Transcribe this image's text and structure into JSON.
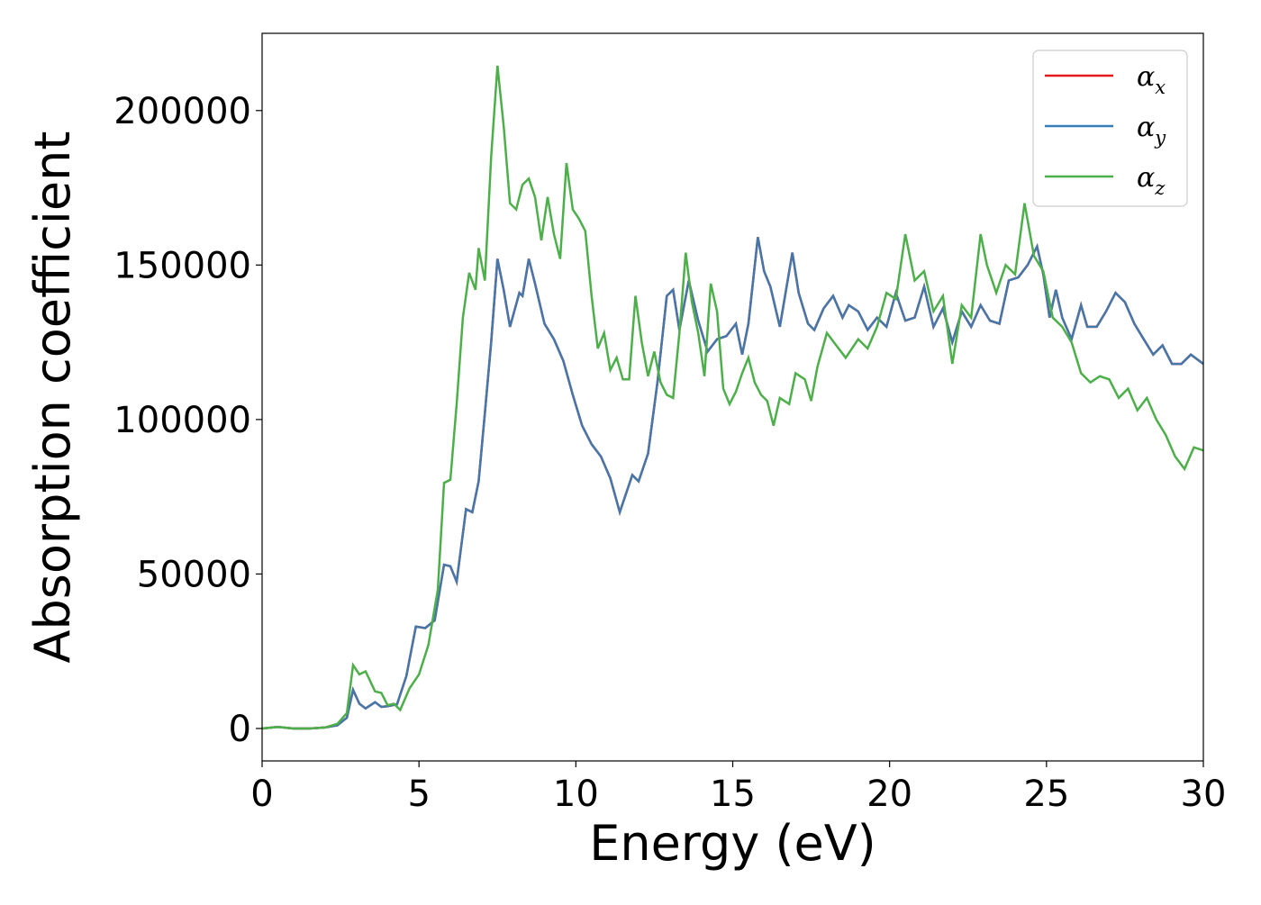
{
  "chart_data": {
    "type": "line",
    "title": "",
    "xlabel": "Energy (eV)",
    "ylabel": "Absorption coefficient",
    "xlim": [
      0,
      30
    ],
    "ylim": [
      -10500,
      225000
    ],
    "xticks": [
      0,
      5,
      10,
      15,
      20,
      25,
      30
    ],
    "xtick_labels": [
      "0",
      "5",
      "10",
      "15",
      "20",
      "25",
      "30"
    ],
    "yticks": [
      0,
      50000,
      100000,
      150000,
      200000
    ],
    "ytick_labels": [
      "0",
      "50000",
      "100000",
      "150000",
      "200000"
    ],
    "grid": false,
    "legend": {
      "placement": "top-right",
      "entries": [
        {
          "base": "α",
          "sub": "x",
          "color": "#e41a1c"
        },
        {
          "base": "α",
          "sub": "y",
          "color": "#377eb8"
        },
        {
          "base": "α",
          "sub": "z",
          "color": "#4daf4a"
        }
      ]
    },
    "series_xy": {
      "name": "αy",
      "note_overlap": "αx coincides with αy",
      "color": "#4477aa",
      "points": [
        [
          0,
          0
        ],
        [
          0.5,
          500
        ],
        [
          1.0,
          0
        ],
        [
          1.5,
          0
        ],
        [
          2.0,
          300
        ],
        [
          2.4,
          1000
        ],
        [
          2.7,
          3500
        ],
        [
          2.9,
          12500
        ],
        [
          3.1,
          8000
        ],
        [
          3.3,
          6500
        ],
        [
          3.6,
          8500
        ],
        [
          3.8,
          7000
        ],
        [
          4.0,
          7200
        ],
        [
          4.3,
          7800
        ],
        [
          4.6,
          17000
        ],
        [
          4.9,
          33000
        ],
        [
          5.2,
          32500
        ],
        [
          5.5,
          35000
        ],
        [
          5.8,
          53000
        ],
        [
          6.0,
          52500
        ],
        [
          6.2,
          47500
        ],
        [
          6.5,
          71000
        ],
        [
          6.7,
          70000
        ],
        [
          6.9,
          80000
        ],
        [
          7.1,
          102000
        ],
        [
          7.3,
          125000
        ],
        [
          7.5,
          152000
        ],
        [
          7.7,
          142000
        ],
        [
          7.9,
          130000
        ],
        [
          8.2,
          141000
        ],
        [
          8.3,
          140000
        ],
        [
          8.5,
          152000
        ],
        [
          8.7,
          144000
        ],
        [
          9.0,
          131000
        ],
        [
          9.3,
          126000
        ],
        [
          9.6,
          119000
        ],
        [
          9.9,
          108000
        ],
        [
          10.2,
          98000
        ],
        [
          10.5,
          92000
        ],
        [
          10.8,
          88000
        ],
        [
          11.1,
          81000
        ],
        [
          11.4,
          70000
        ],
        [
          11.8,
          82000
        ],
        [
          12.0,
          80000
        ],
        [
          12.3,
          89000
        ],
        [
          12.6,
          112000
        ],
        [
          12.9,
          140000
        ],
        [
          13.1,
          142000
        ],
        [
          13.3,
          129000
        ],
        [
          13.6,
          145000
        ],
        [
          13.9,
          132000
        ],
        [
          14.2,
          122000
        ],
        [
          14.5,
          126000
        ],
        [
          14.8,
          127000
        ],
        [
          15.1,
          131000
        ],
        [
          15.3,
          121000
        ],
        [
          15.5,
          131000
        ],
        [
          15.8,
          159000
        ],
        [
          16.0,
          148000
        ],
        [
          16.2,
          143000
        ],
        [
          16.5,
          130000
        ],
        [
          16.9,
          154000
        ],
        [
          17.1,
          141000
        ],
        [
          17.4,
          131000
        ],
        [
          17.6,
          129000
        ],
        [
          17.9,
          136000
        ],
        [
          18.2,
          140000
        ],
        [
          18.5,
          133000
        ],
        [
          18.7,
          137000
        ],
        [
          19.0,
          135000
        ],
        [
          19.3,
          129000
        ],
        [
          19.6,
          133000
        ],
        [
          19.9,
          130000
        ],
        [
          20.2,
          141000
        ],
        [
          20.5,
          132000
        ],
        [
          20.8,
          133000
        ],
        [
          21.1,
          143000
        ],
        [
          21.4,
          130000
        ],
        [
          21.7,
          136000
        ],
        [
          22.0,
          125000
        ],
        [
          22.3,
          135000
        ],
        [
          22.6,
          130000
        ],
        [
          22.9,
          137000
        ],
        [
          23.2,
          132000
        ],
        [
          23.5,
          131000
        ],
        [
          23.8,
          145000
        ],
        [
          24.1,
          146000
        ],
        [
          24.4,
          150000
        ],
        [
          24.7,
          156000
        ],
        [
          24.9,
          147000
        ],
        [
          25.1,
          133000
        ],
        [
          25.3,
          142000
        ],
        [
          25.5,
          133000
        ],
        [
          25.8,
          126000
        ],
        [
          26.1,
          137000
        ],
        [
          26.3,
          130000
        ],
        [
          26.6,
          130000
        ],
        [
          26.9,
          135000
        ],
        [
          27.2,
          141000
        ],
        [
          27.5,
          138000
        ],
        [
          27.8,
          131000
        ],
        [
          28.1,
          126000
        ],
        [
          28.4,
          121000
        ],
        [
          28.7,
          124000
        ],
        [
          29.0,
          118000
        ],
        [
          29.3,
          118000
        ],
        [
          29.6,
          121000
        ],
        [
          30.0,
          118000
        ]
      ]
    },
    "series_z": {
      "name": "αz",
      "color": "#4daf4a",
      "points": [
        [
          0,
          0
        ],
        [
          0.5,
          500
        ],
        [
          1.0,
          0
        ],
        [
          1.5,
          0
        ],
        [
          2.0,
          300
        ],
        [
          2.4,
          1500
        ],
        [
          2.7,
          5000
        ],
        [
          2.9,
          20500
        ],
        [
          3.1,
          17500
        ],
        [
          3.3,
          18500
        ],
        [
          3.6,
          12000
        ],
        [
          3.8,
          11500
        ],
        [
          4.0,
          7500
        ],
        [
          4.2,
          8000
        ],
        [
          4.4,
          6000
        ],
        [
          4.7,
          13000
        ],
        [
          5.0,
          17500
        ],
        [
          5.3,
          27000
        ],
        [
          5.6,
          45000
        ],
        [
          5.8,
          79500
        ],
        [
          6.0,
          80500
        ],
        [
          6.2,
          105000
        ],
        [
          6.4,
          133000
        ],
        [
          6.6,
          147500
        ],
        [
          6.8,
          142000
        ],
        [
          6.9,
          155500
        ],
        [
          7.1,
          145000
        ],
        [
          7.3,
          185000
        ],
        [
          7.5,
          214500
        ],
        [
          7.7,
          195000
        ],
        [
          7.9,
          170000
        ],
        [
          8.1,
          168000
        ],
        [
          8.3,
          176000
        ],
        [
          8.5,
          178000
        ],
        [
          8.7,
          172000
        ],
        [
          8.9,
          158000
        ],
        [
          9.1,
          172000
        ],
        [
          9.3,
          160000
        ],
        [
          9.5,
          152000
        ],
        [
          9.7,
          183000
        ],
        [
          9.9,
          168000
        ],
        [
          10.1,
          165000
        ],
        [
          10.3,
          161000
        ],
        [
          10.5,
          140000
        ],
        [
          10.7,
          123000
        ],
        [
          10.9,
          128000
        ],
        [
          11.1,
          116000
        ],
        [
          11.3,
          120000
        ],
        [
          11.5,
          113000
        ],
        [
          11.7,
          113000
        ],
        [
          11.9,
          140000
        ],
        [
          12.1,
          125000
        ],
        [
          12.3,
          114000
        ],
        [
          12.5,
          122000
        ],
        [
          12.7,
          112000
        ],
        [
          12.9,
          108000
        ],
        [
          13.1,
          107000
        ],
        [
          13.3,
          128000
        ],
        [
          13.5,
          154000
        ],
        [
          13.7,
          138000
        ],
        [
          13.9,
          128000
        ],
        [
          14.1,
          114000
        ],
        [
          14.3,
          144000
        ],
        [
          14.5,
          135000
        ],
        [
          14.7,
          110000
        ],
        [
          14.9,
          105000
        ],
        [
          15.1,
          109000
        ],
        [
          15.3,
          115000
        ],
        [
          15.5,
          120000
        ],
        [
          15.7,
          112000
        ],
        [
          15.9,
          108000
        ],
        [
          16.1,
          106000
        ],
        [
          16.3,
          98000
        ],
        [
          16.5,
          107000
        ],
        [
          16.8,
          105000
        ],
        [
          17.0,
          115000
        ],
        [
          17.3,
          113000
        ],
        [
          17.5,
          106000
        ],
        [
          17.7,
          117000
        ],
        [
          18.0,
          128000
        ],
        [
          18.3,
          124000
        ],
        [
          18.6,
          120000
        ],
        [
          19.0,
          126000
        ],
        [
          19.3,
          123000
        ],
        [
          19.6,
          130000
        ],
        [
          19.9,
          141000
        ],
        [
          20.2,
          139000
        ],
        [
          20.5,
          160000
        ],
        [
          20.8,
          145000
        ],
        [
          21.1,
          148000
        ],
        [
          21.4,
          135000
        ],
        [
          21.7,
          140000
        ],
        [
          22.0,
          118000
        ],
        [
          22.3,
          137000
        ],
        [
          22.6,
          133000
        ],
        [
          22.9,
          160000
        ],
        [
          23.1,
          150000
        ],
        [
          23.4,
          141000
        ],
        [
          23.7,
          150000
        ],
        [
          24.0,
          147000
        ],
        [
          24.3,
          170000
        ],
        [
          24.6,
          153000
        ],
        [
          24.9,
          148000
        ],
        [
          25.2,
          133000
        ],
        [
          25.5,
          130000
        ],
        [
          25.8,
          125000
        ],
        [
          26.1,
          115000
        ],
        [
          26.4,
          112000
        ],
        [
          26.7,
          114000
        ],
        [
          27.0,
          113000
        ],
        [
          27.3,
          107000
        ],
        [
          27.6,
          110000
        ],
        [
          27.9,
          103000
        ],
        [
          28.2,
          107000
        ],
        [
          28.5,
          100000
        ],
        [
          28.8,
          95000
        ],
        [
          29.1,
          88000
        ],
        [
          29.4,
          84000
        ],
        [
          29.7,
          91000
        ],
        [
          30.0,
          90000
        ]
      ]
    }
  }
}
